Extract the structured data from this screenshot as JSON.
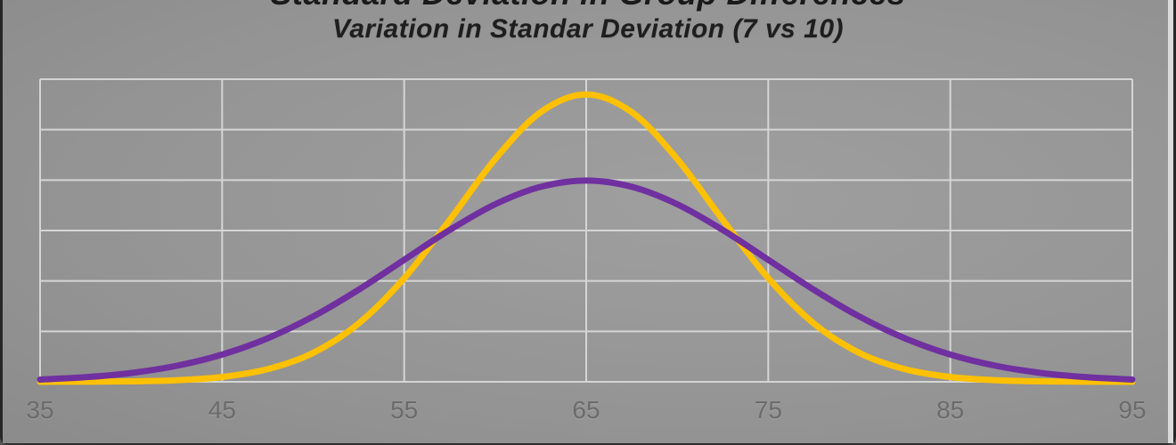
{
  "chart": {
    "title": "Standard Deviation in Group Differences",
    "subtitle": "Variation in Standar Deviation (7 vs 10)"
  },
  "chart_data": {
    "type": "line",
    "title": "Standard Deviation in Group Differences",
    "subtitle": "Variation in Standar Deviation (7 vs 10)",
    "mean": 65,
    "x": [
      35,
      37.5,
      40,
      42.5,
      45,
      47.5,
      50,
      52.5,
      55,
      57.5,
      60,
      62.5,
      65,
      67.5,
      70,
      72.5,
      75,
      77.5,
      80,
      82.5,
      85,
      87.5,
      90,
      92.5,
      95
    ],
    "series": [
      {
        "name": "7",
        "sd": 7,
        "color": "#FFC000",
        "values": [
          6e-06,
          2.5e-05,
          9.7e-05,
          0.000325,
          0.000961,
          0.002504,
          0.005737,
          0.011572,
          0.020543,
          0.032103,
          0.044158,
          0.05347,
          0.056991,
          0.05347,
          0.044158,
          0.032103,
          0.020543,
          0.011572,
          0.005737,
          0.002504,
          0.000961,
          0.000325,
          9.7e-05,
          2.5e-05,
          6e-06
        ]
      },
      {
        "name": "10",
        "sd": 10,
        "color": "#7030A0",
        "values": [
          0.000443,
          0.000911,
          0.001753,
          0.003174,
          0.005399,
          0.008628,
          0.012952,
          0.018265,
          0.024197,
          0.030114,
          0.035207,
          0.038667,
          0.039894,
          0.038667,
          0.035207,
          0.030114,
          0.024197,
          0.018265,
          0.012952,
          0.008628,
          0.005399,
          0.003174,
          0.001753,
          0.000911,
          0.000443
        ]
      }
    ],
    "x_ticks": [
      35,
      45,
      55,
      65,
      75,
      85,
      95
    ],
    "x_tick_labels": [
      "35",
      "45",
      "55",
      "65",
      "75",
      "85",
      "95"
    ],
    "xlabel": "",
    "ylabel": "",
    "xlim": [
      35,
      95
    ],
    "ylim": [
      0,
      0.06
    ],
    "y_gridline_step": 0.01,
    "grid": true,
    "legend": false,
    "smooth": true,
    "gridline_color": "#d5d5d5",
    "axis_label_color": "#6b6b6b",
    "line_width": 7
  }
}
